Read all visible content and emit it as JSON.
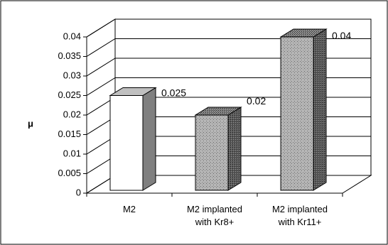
{
  "chart_data": {
    "type": "bar",
    "title": "",
    "xlabel": "",
    "ylabel": "μ",
    "ylim": [
      0,
      0.04
    ],
    "yticks": [
      "0",
      "0.005",
      "0.01",
      "0.015",
      "0.02",
      "0.025",
      "0.03",
      "0.035",
      "0.04"
    ],
    "categories": [
      [
        "M2"
      ],
      [
        "M2 implanted",
        "with Kr8+"
      ],
      [
        "M2 implanted",
        "with Kr11+"
      ]
    ],
    "values": [
      0.025,
      0.02,
      0.04
    ],
    "data_labels": [
      "0.025",
      "0.02",
      "0.04"
    ],
    "grid": true,
    "three_d": true,
    "colors": {
      "bar1_front": "#ffffff",
      "bar1_side": "#808080",
      "bar1_top": "#c0c0c0",
      "hatched_front": "#a8a8a8",
      "hatched_side": "#6e6e6e",
      "hatched_top": "#8a8a8a",
      "gridline": "#000000",
      "frame": "#000000"
    }
  }
}
